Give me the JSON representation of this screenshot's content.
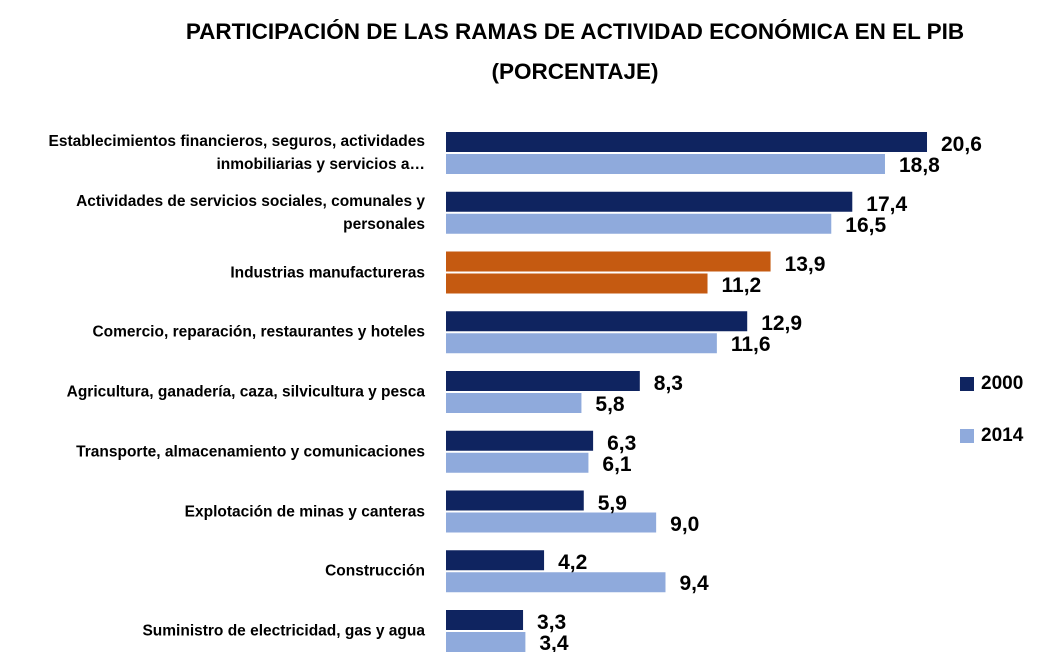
{
  "chart_data": {
    "type": "hbar",
    "title": "PARTICIPACIÓN DE LAS RAMAS DE ACTIVIDAD ECONÓMICA EN EL PIB  (PORCENTAJE)",
    "categories": [
      "Establecimientos financieros, seguros, actividades inmobiliarias y servicios a…",
      "Actividades de servicios sociales, comunales y personales",
      "Industrias manufactureras",
      "Comercio, reparación, restaurantes y hoteles",
      "Agricultura, ganadería, caza, silvicultura y pesca",
      "Transporte, almacenamiento y comunicaciones",
      "Explotación de minas y canteras",
      "Construcción",
      "Suministro de electricidad, gas y agua"
    ],
    "series": [
      {
        "name": "2000",
        "color": "#0f2460",
        "colors": [
          "#0f2460",
          "#0f2460",
          "#c55a11",
          "#0f2460",
          "#0f2460",
          "#0f2460",
          "#0f2460",
          "#0f2460",
          "#0f2460"
        ],
        "values": [
          20.6,
          17.4,
          13.9,
          12.9,
          8.3,
          6.3,
          5.9,
          4.2,
          3.3
        ],
        "value_labels": [
          "20,6",
          "17,4",
          "13,9",
          "12,9",
          "8,3",
          "6,3",
          "5,9",
          "4,2",
          "3,3"
        ]
      },
      {
        "name": "2014",
        "color": "#8faadc",
        "colors": [
          "#8faadc",
          "#8faadc",
          "#c55a11",
          "#8faadc",
          "#8faadc",
          "#8faadc",
          "#8faadc",
          "#8faadc",
          "#8faadc"
        ],
        "values": [
          18.8,
          16.5,
          11.2,
          11.6,
          5.8,
          6.1,
          9.0,
          9.4,
          3.4
        ],
        "value_labels": [
          "18,8",
          "16,5",
          "11,2",
          "11,6",
          "5,8",
          "6,1",
          "9,0",
          "9,4",
          "3,4"
        ]
      }
    ],
    "legend": "right"
  }
}
